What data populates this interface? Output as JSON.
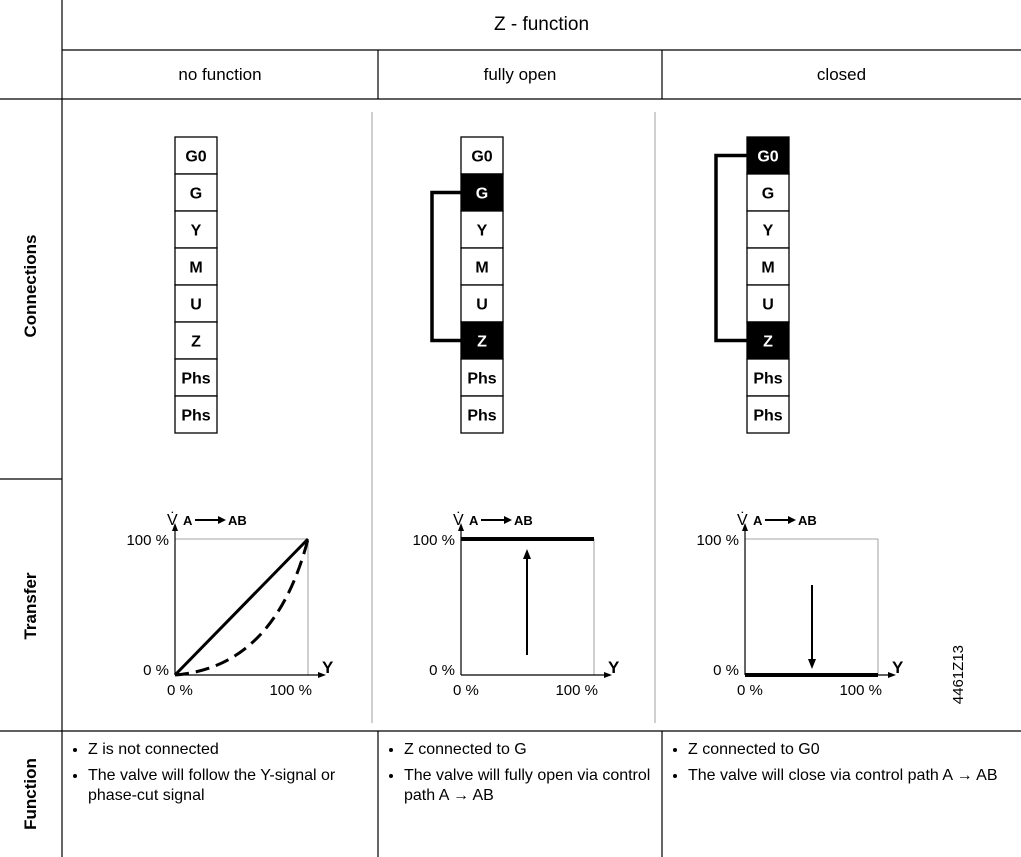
{
  "header": {
    "title": "Z - function",
    "columns": [
      "no function",
      "fully open",
      "closed"
    ]
  },
  "rows": {
    "connections": "Connections",
    "transfer": "Transfer",
    "function": "Function"
  },
  "terminals": [
    "G0",
    "G",
    "Y",
    "M",
    "U",
    "Z",
    "Phs",
    "Phs"
  ],
  "highlighted": {
    "no_function": [],
    "fully_open": [
      "G",
      "Z"
    ],
    "closed": [
      "G0",
      "Z"
    ]
  },
  "transfer": {
    "y_axis_symbol": "V̇",
    "flow_from": "A",
    "flow_to": "AB",
    "y_top": "100 %",
    "y_bottom": "0 %",
    "x_left": "0 %",
    "x_right": "100 %",
    "x_axis": "Y"
  },
  "function_text": {
    "no_function": [
      "Z is not connected",
      "The valve will follow the Y-signal or phase-cut signal"
    ],
    "fully_open": [
      "Z connected to G",
      "The valve will fully open via control path A → AB"
    ],
    "closed": [
      "Z connected to G0",
      "The valve will close via control path A → AB"
    ]
  },
  "figure_id": "4461Z13"
}
